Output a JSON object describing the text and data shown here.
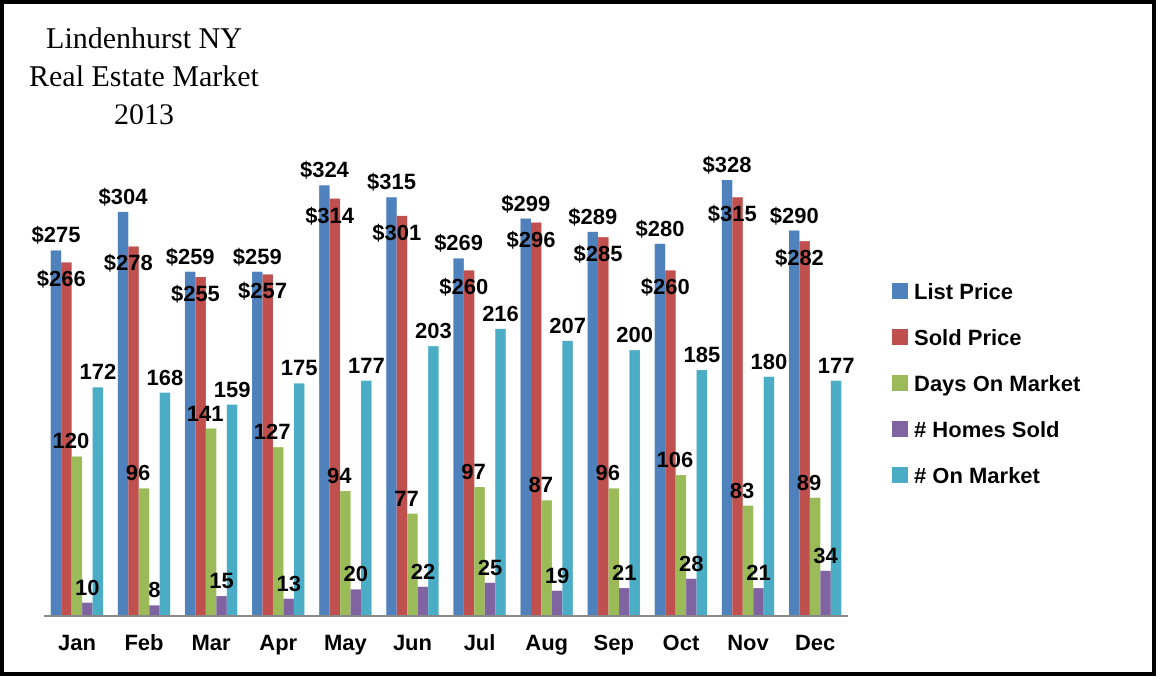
{
  "chart_data": {
    "type": "bar",
    "title": "Lindenhurst NY\nReal Estate Market\n2013",
    "categories": [
      "Jan",
      "Feb",
      "Mar",
      "Apr",
      "May",
      "Jun",
      "Jul",
      "Aug",
      "Sep",
      "Oct",
      "Nov",
      "Dec"
    ],
    "legend": "right",
    "grid": false,
    "series": [
      {
        "name": "List Price",
        "color": "#4f81bd",
        "values": [
          275,
          304,
          259,
          259,
          324,
          315,
          269,
          299,
          289,
          280,
          328,
          290
        ],
        "value_labels": [
          "$275",
          "$304",
          "$259",
          "$259",
          "$324",
          "$315",
          "$269",
          "$299",
          "$289",
          "$280",
          "$328",
          "$290"
        ]
      },
      {
        "name": "Sold Price",
        "color": "#c0504d",
        "values": [
          266,
          278,
          255,
          257,
          314,
          301,
          260,
          296,
          285,
          260,
          315,
          282
        ],
        "value_labels": [
          "$266",
          "$278",
          "$255",
          "$257",
          "$314",
          "$301",
          "$260",
          "$296",
          "$285",
          "$260",
          "$315",
          "$282"
        ]
      },
      {
        "name": "Days On Market",
        "color": "#9bbb59",
        "values": [
          120,
          96,
          141,
          127,
          94,
          77,
          97,
          87,
          96,
          106,
          83,
          89
        ],
        "value_labels": [
          "120",
          "96",
          "141",
          "127",
          "94",
          "77",
          "97",
          "87",
          "96",
          "106",
          "83",
          "89"
        ]
      },
      {
        "name": "# Homes Sold",
        "color": "#8064a2",
        "values": [
          10,
          8,
          15,
          13,
          20,
          22,
          25,
          19,
          21,
          28,
          21,
          34
        ],
        "value_labels": [
          "10",
          "8",
          "15",
          "13",
          "20",
          "22",
          "25",
          "19",
          "21",
          "28",
          "21",
          "34"
        ]
      },
      {
        "name": "# On Market",
        "color": "#4bacc6",
        "values": [
          172,
          168,
          159,
          175,
          177,
          203,
          216,
          207,
          200,
          185,
          180,
          177
        ],
        "value_labels": [
          "172",
          "168",
          "159",
          "175",
          "177",
          "203",
          "216",
          "207",
          "200",
          "185",
          "180",
          "177"
        ]
      }
    ]
  }
}
